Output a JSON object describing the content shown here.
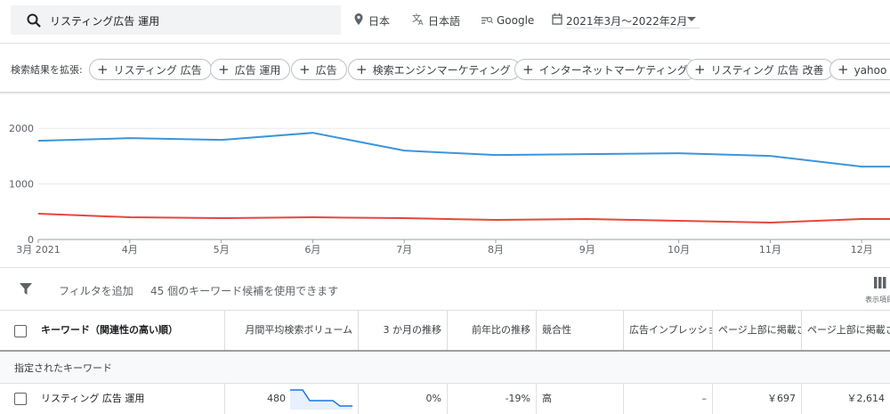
{
  "search": {
    "query": "リスティング広告 運用",
    "location": "日本",
    "language": "日本語",
    "network": "Google",
    "date_range": "2021年3月～2022年2月"
  },
  "expand": {
    "label": "検索結果を拡張:",
    "chips": [
      "リスティング 広告",
      "広告 運用",
      "広告",
      "検索エンジンマーケティング",
      "インターネットマーケティング",
      "リスティング 広告 改善",
      "yahoo プ"
    ]
  },
  "chart_data": {
    "type": "line",
    "categories": [
      "3月 2021",
      "4月",
      "5月",
      "6月",
      "7月",
      "8月",
      "9月",
      "10月",
      "11月",
      "12月",
      null
    ],
    "series": [
      {
        "color": "#3b95dc",
        "values": [
          1776,
          1824,
          1792,
          1920,
          1600,
          1520,
          1536,
          1552,
          1504,
          1312,
          1312
        ]
      },
      {
        "color": "#e8453c",
        "values": [
          464,
          400,
          384,
          400,
          384,
          352,
          368,
          336,
          304,
          368,
          368
        ]
      }
    ],
    "ylim": [
      0,
      2500
    ],
    "yticks": [
      0,
      1000,
      2000
    ],
    "grid": true
  },
  "filter_bar": {
    "add_filter": "フィルタを追加",
    "count_text": "45 個のキーワード候補を使用できます",
    "columns": "表示項目"
  },
  "table": {
    "headers": [
      "キーワード（関連性の高い順）",
      "月間平均検索ボリューム",
      "3 か月の推移",
      "前年比の推移",
      "競合性",
      "広告インプレッション シェア",
      "ページ上部に掲載された広告の入札単価（低額帯）",
      "ページ上部に掲載された広告の入札単価（高額帯）"
    ],
    "section": "指定されたキーワード",
    "rows": [
      [
        "リスティング 広告 運用",
        "480",
        "0%",
        "-19%",
        "高",
        "–",
        "￥697",
        "￥2,614"
      ]
    ]
  }
}
